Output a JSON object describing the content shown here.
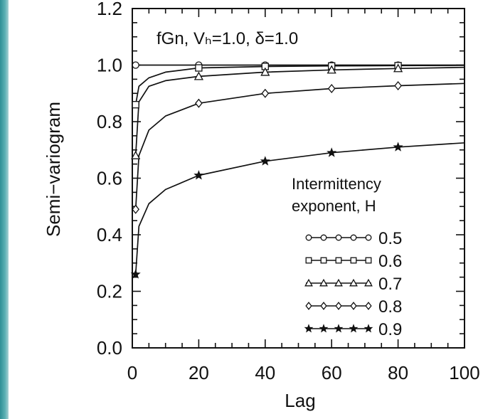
{
  "chart_data": {
    "type": "line",
    "title": "fGn,  Vₕ=1.0,  δ=1.0",
    "xlabel": "Lag",
    "ylabel": "Semi−variogram",
    "xlim": [
      0,
      100
    ],
    "ylim": [
      0.0,
      1.2
    ],
    "xticks": [
      "0",
      "20",
      "40",
      "60",
      "80",
      "100"
    ],
    "yticks": [
      "0.0",
      "0.2",
      "0.4",
      "0.6",
      "0.8",
      "1.0",
      "1.2"
    ],
    "grid": false,
    "legend_title_1": "Intermittency",
    "legend_title_2": "exponent,  H",
    "legend_position": "lower-right",
    "series": [
      {
        "name": "0.5",
        "marker": "circle",
        "x": [
          1,
          20,
          40,
          60,
          80,
          100
        ],
        "y": [
          1.0,
          1.0,
          1.0,
          1.0,
          1.0,
          1.0
        ]
      },
      {
        "name": "0.6",
        "marker": "square",
        "x": [
          1,
          2,
          5,
          10,
          20,
          40,
          60,
          80,
          100
        ],
        "y": [
          0.86,
          0.925,
          0.955,
          0.975,
          0.99,
          0.995,
          0.997,
          0.998,
          0.999
        ]
      },
      {
        "name": "0.7",
        "marker": "triangle",
        "x": [
          1,
          2,
          5,
          10,
          20,
          40,
          60,
          80,
          100
        ],
        "y": [
          0.68,
          0.87,
          0.925,
          0.945,
          0.96,
          0.975,
          0.983,
          0.988,
          0.992
        ]
      },
      {
        "name": "0.8",
        "marker": "diamond",
        "x": [
          1,
          2,
          5,
          10,
          20,
          40,
          60,
          80,
          100
        ],
        "y": [
          0.49,
          0.68,
          0.77,
          0.82,
          0.865,
          0.9,
          0.917,
          0.927,
          0.935
        ]
      },
      {
        "name": "0.9",
        "marker": "star",
        "x": [
          1,
          2,
          5,
          10,
          20,
          40,
          60,
          80,
          100
        ],
        "y": [
          0.26,
          0.43,
          0.51,
          0.56,
          0.61,
          0.66,
          0.69,
          0.71,
          0.725
        ]
      }
    ]
  }
}
